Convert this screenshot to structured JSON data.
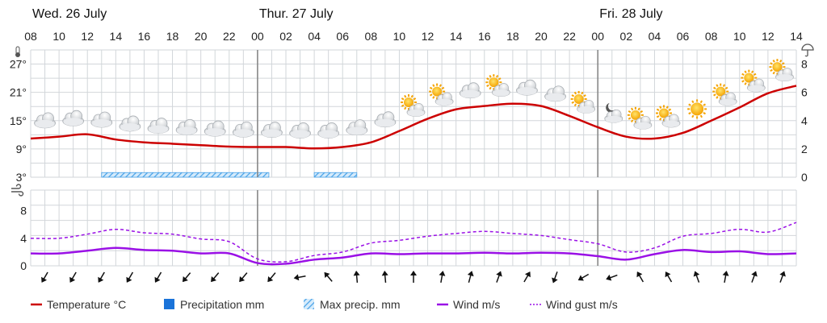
{
  "chart_data": [
    {
      "type": "line",
      "panel": "temperature-precipitation",
      "day_labels": [
        {
          "label": "Wed. 26 July",
          "hour_index": 0
        },
        {
          "label": "Thur. 27 July",
          "hour_index": 16
        },
        {
          "label": "Fri. 28 July",
          "hour_index": 40
        }
      ],
      "x_tick_labels": [
        "08",
        "10",
        "12",
        "14",
        "16",
        "18",
        "20",
        "22",
        "00",
        "02",
        "04",
        "06",
        "08",
        "10",
        "12",
        "14",
        "16",
        "18",
        "20",
        "22",
        "00",
        "02",
        "04",
        "06",
        "08",
        "10",
        "12",
        "14"
      ],
      "x_range_hours": [
        0,
        54
      ],
      "y_left_ticks": [
        "3°",
        "9°",
        "15°",
        "21°",
        "27°"
      ],
      "y_left_range": [
        3,
        30
      ],
      "y_right_ticks": [
        "0",
        "2",
        "4",
        "6",
        "8"
      ],
      "y_right_range": [
        0,
        9
      ],
      "legend_placement": "bottom",
      "series": [
        {
          "name": "Temperature °C",
          "color": "#cc0000",
          "hours": [
            0,
            2,
            4,
            6,
            8,
            10,
            12,
            14,
            16,
            18,
            20,
            22,
            24,
            26,
            28,
            30,
            32,
            34,
            36,
            38,
            40,
            42,
            44,
            46,
            48,
            50,
            52,
            54
          ],
          "values": [
            11.2,
            11.6,
            12.1,
            11.0,
            10.4,
            10.1,
            9.8,
            9.5,
            9.4,
            9.4,
            9.1,
            9.4,
            10.4,
            12.8,
            15.4,
            17.4,
            18.1,
            18.6,
            18.1,
            16.0,
            13.6,
            11.6,
            11.2,
            12.4,
            15.0,
            17.8,
            20.8,
            22.4
          ]
        }
      ],
      "max_precip": {
        "name": "Max precip. mm",
        "color": "#4aa3e8",
        "bars": [
          {
            "start_hour": 5,
            "end_hour": 16.8,
            "value": 0.1
          },
          {
            "start_hour": 20,
            "end_hour": 23,
            "value": 0.1
          }
        ]
      },
      "weather_icons": [
        {
          "hour": 1,
          "icon": "cloud-icon"
        },
        {
          "hour": 3,
          "icon": "cloud-icon"
        },
        {
          "hour": 5,
          "icon": "cloud-icon"
        },
        {
          "hour": 7,
          "icon": "cloud-icon"
        },
        {
          "hour": 9,
          "icon": "cloud-icon"
        },
        {
          "hour": 11,
          "icon": "cloud-icon"
        },
        {
          "hour": 13,
          "icon": "cloud-icon"
        },
        {
          "hour": 15,
          "icon": "cloud-icon"
        },
        {
          "hour": 17,
          "icon": "cloud-icon"
        },
        {
          "hour": 19,
          "icon": "cloud-icon"
        },
        {
          "hour": 21,
          "icon": "cloud-icon"
        },
        {
          "hour": 23,
          "icon": "cloud-icon"
        },
        {
          "hour": 25,
          "icon": "cloud-icon"
        },
        {
          "hour": 27,
          "icon": "partly-sunny-icon"
        },
        {
          "hour": 29,
          "icon": "partly-sunny-icon"
        },
        {
          "hour": 31,
          "icon": "cloud-icon"
        },
        {
          "hour": 33,
          "icon": "partly-sunny-icon"
        },
        {
          "hour": 35,
          "icon": "cloud-icon"
        },
        {
          "hour": 37,
          "icon": "cloud-icon"
        },
        {
          "hour": 39,
          "icon": "partly-sunny-icon"
        },
        {
          "hour": 41,
          "icon": "partly-cloudy-night-icon"
        },
        {
          "hour": 43,
          "icon": "partly-sunny-icon"
        },
        {
          "hour": 45,
          "icon": "partly-sunny-icon"
        },
        {
          "hour": 47,
          "icon": "sun-icon"
        },
        {
          "hour": 49,
          "icon": "partly-sunny-icon"
        },
        {
          "hour": 51,
          "icon": "partly-sunny-icon"
        },
        {
          "hour": 53,
          "icon": "partly-sunny-icon"
        }
      ]
    },
    {
      "type": "line",
      "panel": "wind",
      "y_left_ticks": [
        "0",
        "4",
        "8"
      ],
      "y_left_range": [
        0,
        11
      ],
      "series": [
        {
          "name": "Wind m/s",
          "color": "#9a10e6",
          "hours": [
            0,
            2,
            4,
            6,
            8,
            10,
            12,
            14,
            16,
            18,
            20,
            22,
            24,
            26,
            28,
            30,
            32,
            34,
            36,
            38,
            40,
            42,
            44,
            46,
            48,
            50,
            52,
            54
          ],
          "values": [
            1.8,
            1.8,
            2.2,
            2.6,
            2.3,
            2.2,
            1.8,
            1.8,
            0.4,
            0.3,
            0.9,
            1.2,
            1.8,
            1.7,
            1.8,
            1.8,
            1.9,
            1.8,
            1.9,
            1.8,
            1.4,
            0.9,
            1.7,
            2.3,
            2.0,
            2.1,
            1.7,
            1.8
          ]
        },
        {
          "name": "Wind gust m/s",
          "color": "#9a10e6",
          "dashed": true,
          "hours": [
            0,
            2,
            4,
            6,
            8,
            10,
            12,
            14,
            16,
            18,
            20,
            22,
            24,
            26,
            28,
            30,
            32,
            34,
            36,
            38,
            40,
            42,
            44,
            46,
            48,
            50,
            52,
            54
          ],
          "values": [
            4.0,
            4.0,
            4.6,
            5.3,
            4.8,
            4.6,
            3.9,
            3.5,
            1.0,
            0.6,
            1.5,
            2.0,
            3.3,
            3.7,
            4.3,
            4.7,
            5.0,
            4.7,
            4.4,
            3.8,
            3.2,
            2.0,
            2.6,
            4.3,
            4.7,
            5.3,
            4.9,
            6.3
          ]
        }
      ],
      "wind_arrows": [
        {
          "hour": 1,
          "from_deg": 30
        },
        {
          "hour": 3,
          "from_deg": 30
        },
        {
          "hour": 5,
          "from_deg": 30
        },
        {
          "hour": 7,
          "from_deg": 30
        },
        {
          "hour": 9,
          "from_deg": 30
        },
        {
          "hour": 11,
          "from_deg": 40
        },
        {
          "hour": 13,
          "from_deg": 40
        },
        {
          "hour": 15,
          "from_deg": 40
        },
        {
          "hour": 17,
          "from_deg": 40
        },
        {
          "hour": 19,
          "from_deg": 80
        },
        {
          "hour": 21,
          "from_deg": 140
        },
        {
          "hour": 23,
          "from_deg": 175
        },
        {
          "hour": 25,
          "from_deg": 175
        },
        {
          "hour": 27,
          "from_deg": 180
        },
        {
          "hour": 29,
          "from_deg": 190
        },
        {
          "hour": 31,
          "from_deg": 195
        },
        {
          "hour": 33,
          "from_deg": 200
        },
        {
          "hour": 35,
          "from_deg": 210
        },
        {
          "hour": 37,
          "from_deg": 20
        },
        {
          "hour": 39,
          "from_deg": 60
        },
        {
          "hour": 41,
          "from_deg": 70
        },
        {
          "hour": 43,
          "from_deg": 150
        },
        {
          "hour": 45,
          "from_deg": 150
        },
        {
          "hour": 47,
          "from_deg": 160
        },
        {
          "hour": 49,
          "from_deg": 190
        },
        {
          "hour": 51,
          "from_deg": 200
        },
        {
          "hour": 53,
          "from_deg": 200
        }
      ]
    }
  ],
  "legend": [
    {
      "label": "Temperature °C",
      "icon": "line-swatch",
      "color": "#cc0000"
    },
    {
      "label": "Precipitation mm",
      "icon": "square-swatch",
      "color": "#1a73d9"
    },
    {
      "label": "Max precip. mm",
      "icon": "hatched-swatch",
      "color": "#4aa3e8"
    },
    {
      "label": "Wind m/s",
      "icon": "line-swatch",
      "color": "#9a10e6"
    },
    {
      "label": "Wind gust m/s",
      "icon": "dashed-line-swatch",
      "color": "#9a10e6"
    }
  ],
  "icons": {
    "temperature_axis": "thermometer-icon",
    "precip_axis": "umbrella-icon",
    "wind_axis": "wind-icon"
  }
}
